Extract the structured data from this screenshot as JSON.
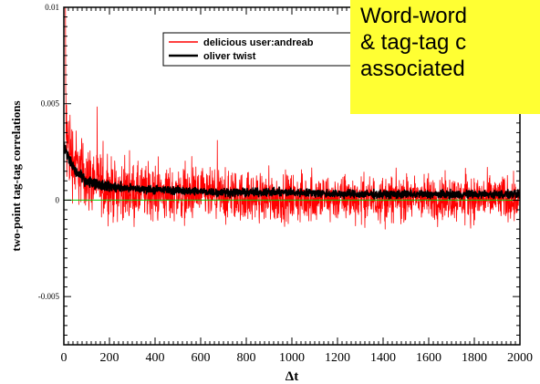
{
  "chart_data": {
    "type": "line",
    "title": "",
    "xlabel": "Δt",
    "ylabel": "two-point tag-tag correlations",
    "xlim": [
      0,
      2000
    ],
    "ylim": [
      -0.0075,
      0.01
    ],
    "x_ticks": [
      0,
      200,
      400,
      600,
      800,
      1000,
      1200,
      1400,
      1600,
      1800,
      2000
    ],
    "x_tick_labels": [
      "0",
      "200",
      "400",
      "600",
      "800",
      "1000",
      "1200",
      "1400",
      "1600",
      "1800",
      "2000"
    ],
    "y_ticks": [
      -0.005,
      0,
      0.005,
      0.01
    ],
    "y_tick_labels": [
      "-0.005",
      "0",
      "0.005",
      "0.01"
    ],
    "grid": false,
    "legend_position": "top-right",
    "baseline": {
      "y": 0,
      "color": "#00cc00"
    },
    "series": [
      {
        "name": "delicious user:andreab",
        "color": "#ff0000",
        "envelope_x": [
          0,
          20,
          50,
          100,
          200,
          300,
          500,
          700,
          1000,
          1300,
          1600,
          2000
        ],
        "center": [
          0.0045,
          0.0028,
          0.0018,
          0.0012,
          0.0006,
          0.0004,
          0.0003,
          0.0002,
          0.0001,
          0.0001,
          0.0001,
          0.0001
        ],
        "amplitude": [
          0.005,
          0.0035,
          0.0028,
          0.0025,
          0.0022,
          0.0021,
          0.002,
          0.0019,
          0.0018,
          0.0017,
          0.0017,
          0.0017
        ]
      },
      {
        "name": "oliver twist",
        "color": "#000000",
        "envelope_x": [
          0,
          20,
          50,
          100,
          200,
          300,
          500,
          700,
          1000,
          1300,
          1600,
          2000
        ],
        "center": [
          0.0028,
          0.0022,
          0.0015,
          0.001,
          0.0007,
          0.0006,
          0.0005,
          0.0004,
          0.0004,
          0.0003,
          0.0003,
          0.0003
        ],
        "amplitude": [
          0.0006,
          0.0005,
          0.0004,
          0.0004,
          0.0004,
          0.0003,
          0.0003,
          0.0003,
          0.0003,
          0.0003,
          0.0003,
          0.0003
        ]
      }
    ]
  },
  "callout": {
    "lines": [
      "Word-word",
      "& tag-tag c",
      "associated"
    ],
    "background": "#ffff33"
  }
}
